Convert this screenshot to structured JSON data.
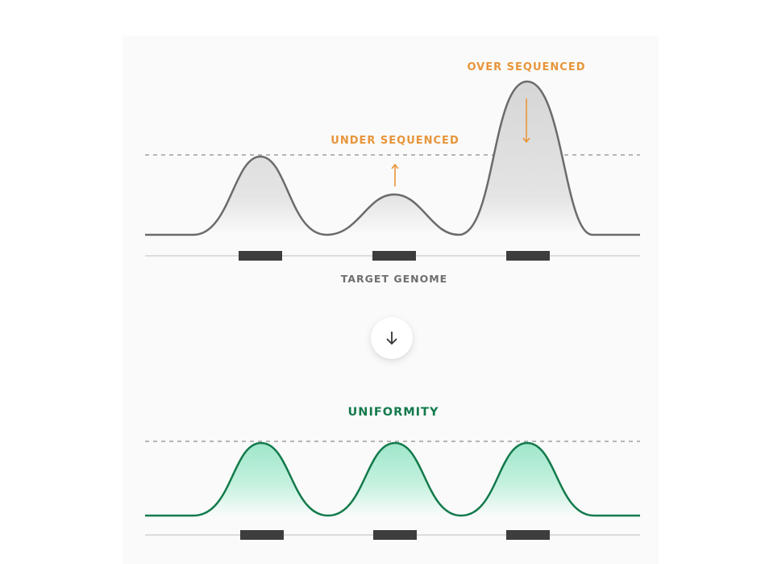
{
  "labels": {
    "over_sequenced": "OVER SEQUENCED",
    "under_sequenced": "UNDER SEQUENCED",
    "target_genome": "TARGET GENOME",
    "uniformity": "UNIFORMITY"
  },
  "colors": {
    "orange": "#e8953a",
    "gray_curve": "#6b6b6b",
    "gray_fill": "#dedede",
    "green": "#137a4c",
    "green_fill": "#a6ead0",
    "dashed": "#b5b5b5",
    "baseline": "#dcdcdc",
    "target_block": "#3d3d3d"
  },
  "icons": {
    "transition": "arrow-down-icon",
    "under_indicator": "arrow-up-icon",
    "over_indicator": "arrow-down-icon"
  }
}
